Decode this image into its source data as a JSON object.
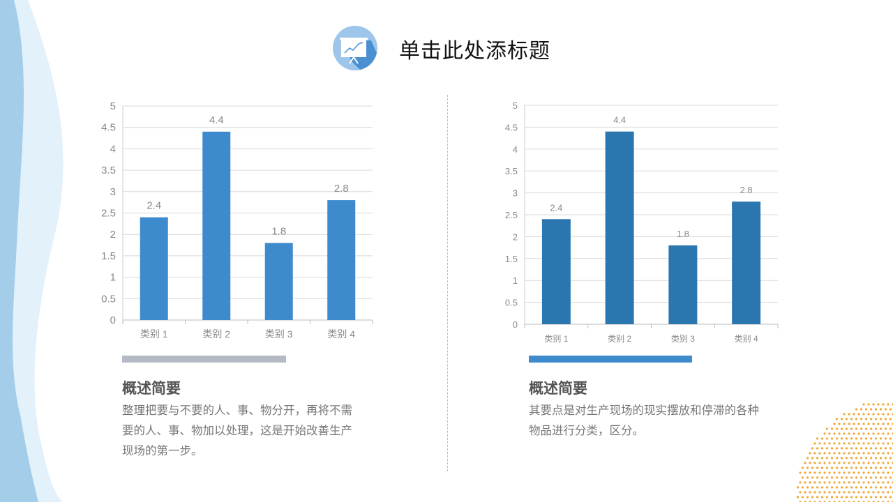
{
  "header": {
    "title": "单击此处添标题",
    "icon": "presentation-chart-icon",
    "icon_color": "#4a90d0"
  },
  "colors": {
    "left_bar": "#3d8bcd",
    "right_bar": "#2c76b0",
    "left_accent": "#b4bac4",
    "right_accent": "#3d8bcd",
    "dots": "#f0a838",
    "wave_light": "#e2f1fa",
    "wave_dark": "#a3cde9"
  },
  "chart_data": [
    {
      "type": "bar",
      "categories": [
        "类别 1",
        "类别 2",
        "类别 3",
        "类别 4"
      ],
      "values": [
        2.4,
        4.4,
        1.8,
        2.8
      ],
      "data_labels": [
        "2.4",
        "4.4",
        "1.8",
        "2.8"
      ],
      "yticks": [
        "0",
        "0.5",
        "1",
        "1.5",
        "2",
        "2.5",
        "3",
        "3.5",
        "4",
        "4.5",
        "5"
      ],
      "ylim": [
        0,
        5
      ],
      "grid": true
    },
    {
      "type": "bar",
      "categories": [
        "类别 1",
        "类别 2",
        "类别 3",
        "类别 4"
      ],
      "values": [
        2.4,
        4.4,
        1.8,
        2.8
      ],
      "data_labels": [
        "2.4",
        "4.4",
        "1.8",
        "2.8"
      ],
      "yticks": [
        "0",
        "0.5",
        "1",
        "1.5",
        "2",
        "2.5",
        "3",
        "3.5",
        "4",
        "4.5",
        "5"
      ],
      "ylim": [
        0,
        5
      ],
      "grid": true
    }
  ],
  "panels": [
    {
      "heading": "概述简要",
      "text": "整理把要与不要的人、事、物分开，再将不需要的人、事、物加以处理，这是开始改善生产现场的第一步。"
    },
    {
      "heading": "概述简要",
      "text": "其要点是对生产现场的现实摆放和停滞的各种物品进行分类，区分。"
    }
  ]
}
